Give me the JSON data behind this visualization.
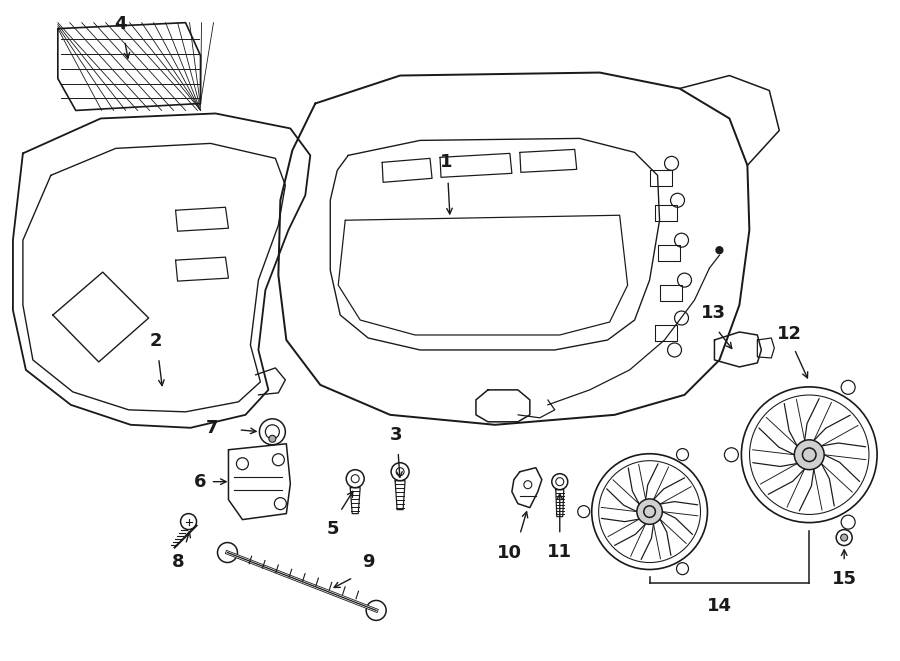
{
  "background_color": "#ffffff",
  "line_color": "#1a1a1a",
  "lw": 1.1,
  "fig_w": 9.0,
  "fig_h": 6.61,
  "dpi": 100
}
